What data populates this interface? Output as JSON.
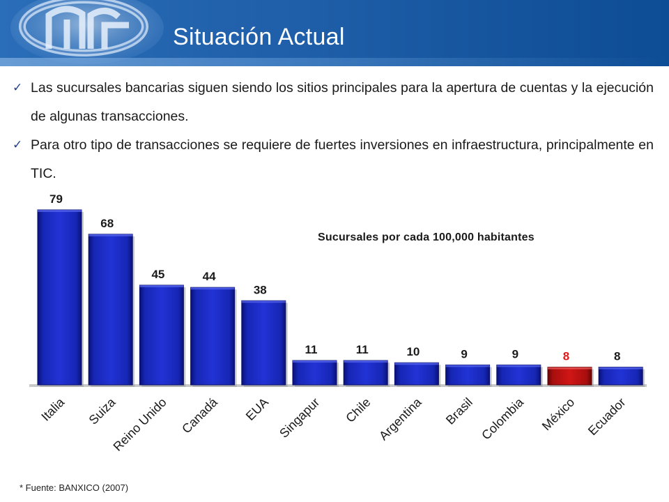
{
  "slide": {
    "title": "Situación Actual",
    "bullets": [
      "Las sucursales bancarias siguen siendo los sitios principales para la apertura de cuentas y la ejecución de algunas transacciones.",
      "Para otro tipo de transacciones se requiere de fuertes inversiones en infraestructura, principalmente en TIC."
    ],
    "bullet_icon": "check-icon",
    "footnote": "* Fuente: BANXICO (2007)"
  },
  "colors": {
    "header": "#1f5ea8",
    "bar": "#1a28c8",
    "bar_highlight": "#c01010",
    "highlight_label": "#e01818",
    "label": "#1a1a1a"
  },
  "chart_data": {
    "type": "bar",
    "title": "Sucursales por cada 100,000 habitantes",
    "categories": [
      "Italia",
      "Suiza",
      "Reino Unido",
      "Canadá",
      "EUA",
      "Singapur",
      "Chile",
      "Argentina",
      "Brasil",
      "Colombia",
      "México",
      "Ecuador"
    ],
    "values": [
      79,
      68,
      45,
      44,
      38,
      11,
      11,
      10,
      9,
      9,
      8,
      8
    ],
    "highlight": "México",
    "data_labels": true,
    "ylim": [
      0,
      79
    ],
    "grid": false,
    "legend": "none"
  }
}
